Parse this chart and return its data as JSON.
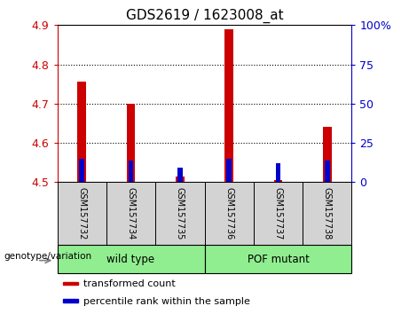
{
  "title": "GDS2619 / 1623008_at",
  "samples": [
    "GSM157732",
    "GSM157734",
    "GSM157735",
    "GSM157736",
    "GSM157737",
    "GSM157738"
  ],
  "red_values": [
    4.755,
    4.7,
    4.515,
    4.89,
    4.505,
    4.64
  ],
  "blue_values": [
    4.56,
    4.555,
    4.538,
    4.56,
    4.548,
    4.555
  ],
  "ymin": 4.5,
  "ymax": 4.9,
  "yticks_left": [
    4.5,
    4.6,
    4.7,
    4.8,
    4.9
  ],
  "yticks_right": [
    0,
    25,
    50,
    75,
    100
  ],
  "genotype_label": "genotype/variation",
  "legend_items": [
    {
      "color": "#CC0000",
      "label": "transformed count"
    },
    {
      "color": "#0000CC",
      "label": "percentile rank within the sample"
    }
  ],
  "red_bar_width": 0.18,
  "blue_bar_width": 0.1,
  "left_axis_color": "#CC0000",
  "right_axis_color": "#0000CC",
  "sample_bg_color": "#D3D3D3",
  "group_bg_color": "#90EE90",
  "grid_yticks": [
    4.6,
    4.7,
    4.8
  ]
}
